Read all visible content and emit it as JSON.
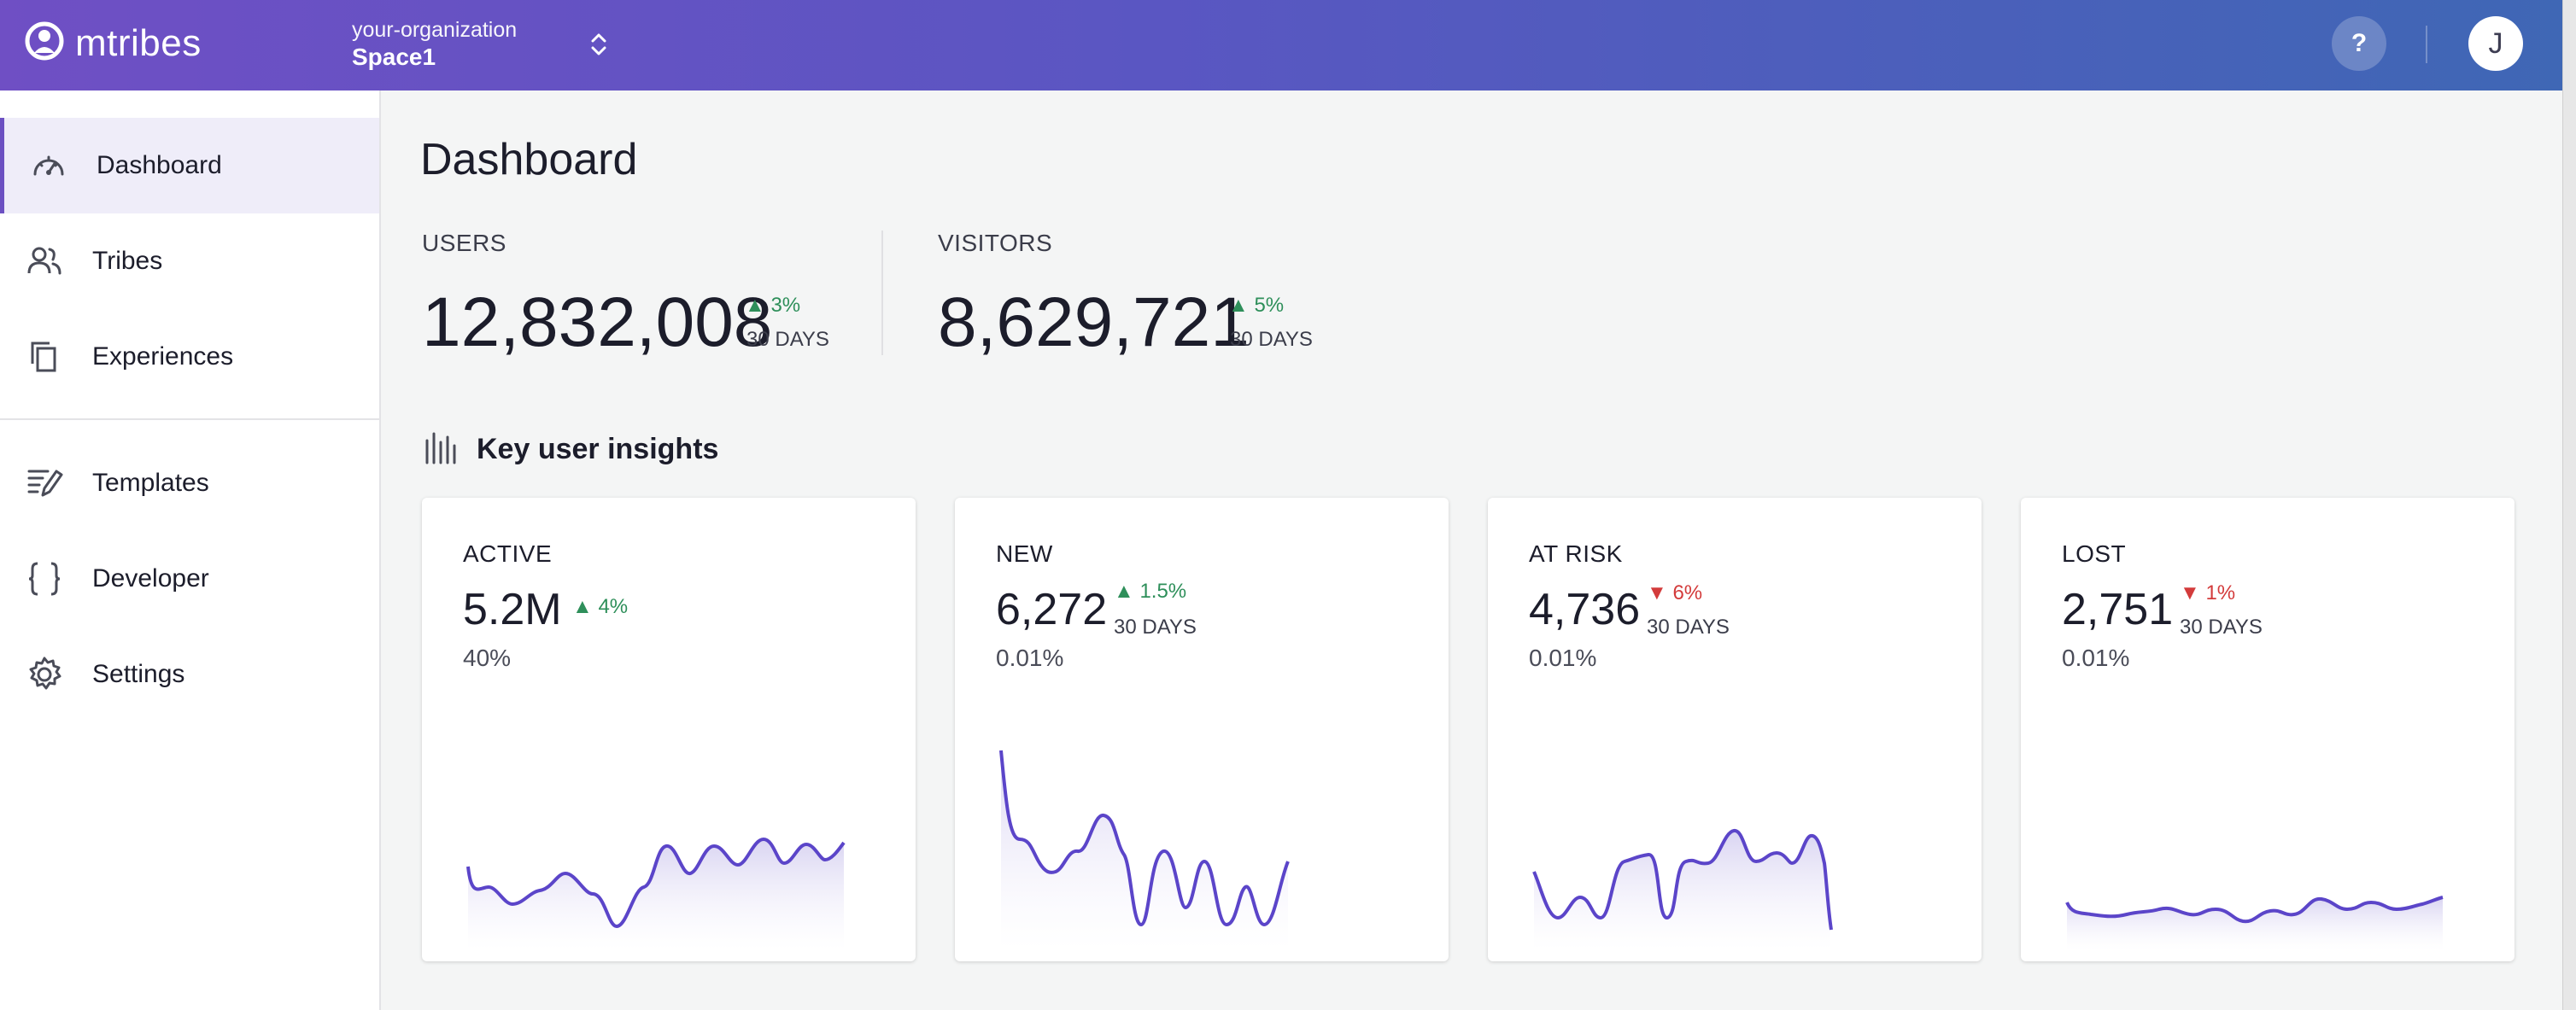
{
  "header": {
    "logo_text": "mtribes",
    "org_name": "your-organization",
    "space_name": "Space1",
    "help_label": "?",
    "avatar_initial": "J"
  },
  "sidebar": {
    "items": [
      {
        "label": "Dashboard",
        "icon": "speedometer-icon",
        "active": true
      },
      {
        "label": "Tribes",
        "icon": "users-icon"
      },
      {
        "label": "Experiences",
        "icon": "copy-icon"
      },
      {
        "label": "Templates",
        "icon": "edit-template-icon"
      },
      {
        "label": "Developer",
        "icon": "braces-icon"
      },
      {
        "label": "Settings",
        "icon": "gear-icon"
      }
    ]
  },
  "main": {
    "title": "Dashboard",
    "stats": [
      {
        "label": "USERS",
        "value": "12,832,008",
        "change": "3%",
        "period": "30 DAYS"
      },
      {
        "label": "VISITORS",
        "value": "8,629,721",
        "change": "5%",
        "period": "30 DAYS"
      }
    ],
    "insights_title": "Key user insights",
    "cards": [
      {
        "label": "ACTIVE",
        "value": "5.2M",
        "change": "4%",
        "direction": "up",
        "sub": "40%"
      },
      {
        "label": "NEW",
        "value": "6,272",
        "change": "1.5%",
        "direction": "up",
        "period": "30 DAYS",
        "sub": "0.01%"
      },
      {
        "label": "AT RISK",
        "value": "4,736",
        "change": "6%",
        "direction": "down",
        "period": "30 DAYS",
        "sub": "0.01%"
      },
      {
        "label": "LOST",
        "value": "2,751",
        "change": "1%",
        "direction": "down",
        "period": "30 DAYS",
        "sub": "0.01%"
      }
    ]
  },
  "colors": {
    "accent": "#6c50c2",
    "up": "#2e8f5a",
    "down": "#d33b3b",
    "spark_line": "#5b45c9"
  }
}
